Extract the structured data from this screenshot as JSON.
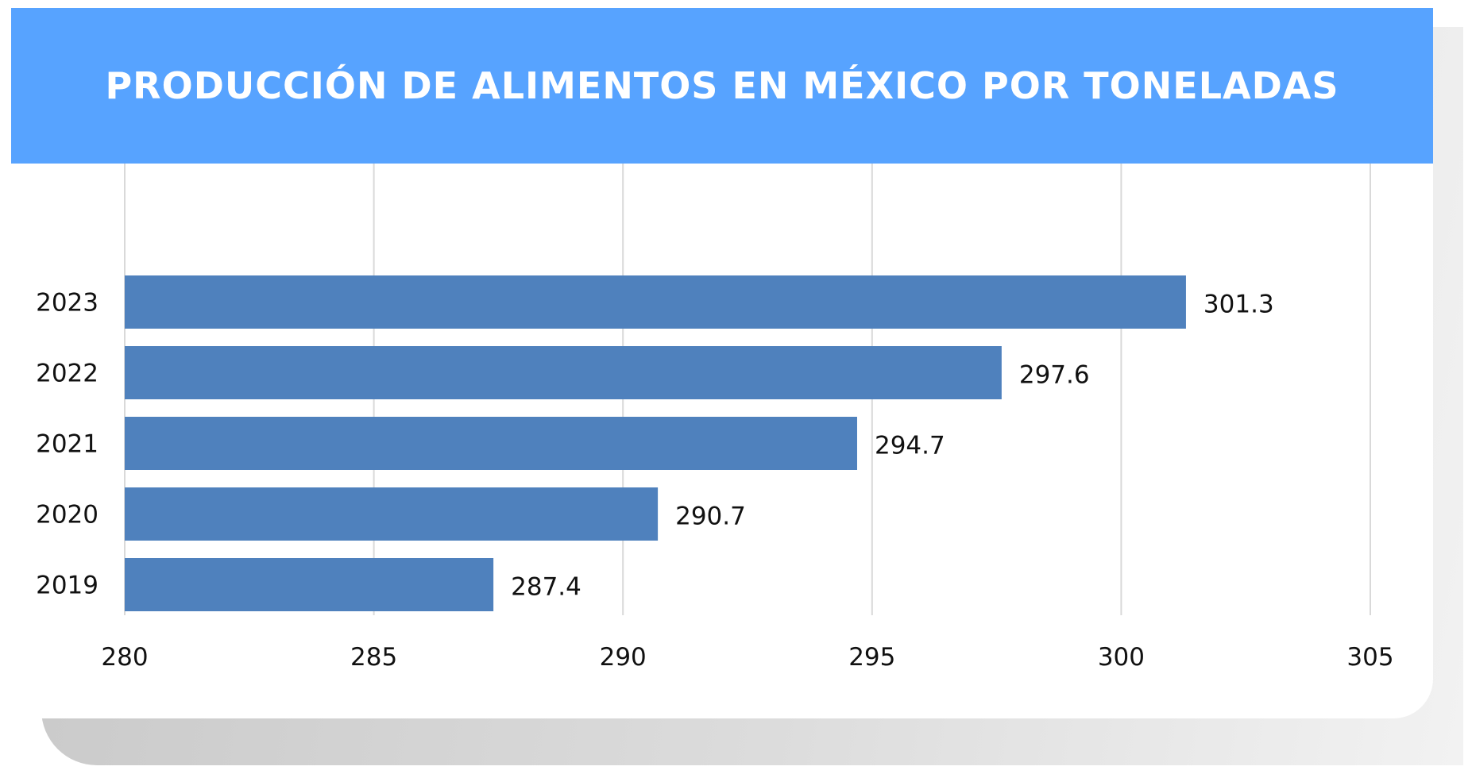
{
  "chart_data": {
    "type": "bar",
    "orientation": "horizontal",
    "title": "PRODUCCIÓN DE ALIMENTOS EN MÉXICO POR TONELADAS",
    "categories": [
      "2023",
      "2022",
      "2021",
      "2020",
      "2019"
    ],
    "values": [
      301.3,
      297.6,
      294.7,
      290.7,
      287.4
    ],
    "value_labels": [
      "301.3",
      "297.6",
      "294.7",
      "290.7",
      "287.4"
    ],
    "xlim": [
      280,
      305
    ],
    "x_ticks": [
      "280",
      "285",
      "290",
      "295",
      "300",
      "305"
    ],
    "xlabel": "",
    "ylabel": "",
    "grid": "vertical",
    "legend": "none"
  },
  "colors": {
    "title_bar": "#57a3ff",
    "title_text": "#ffffff",
    "bar": "#4f81bd",
    "grid": "#d9d9d9",
    "text": "#111111"
  }
}
